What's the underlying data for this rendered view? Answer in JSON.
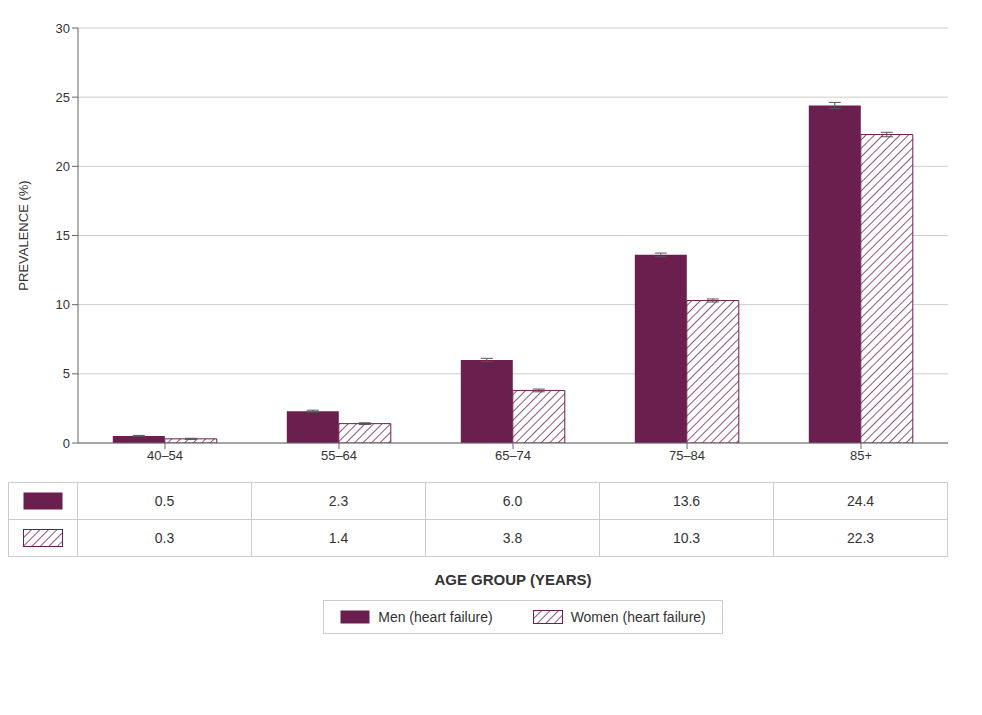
{
  "chart_data": {
    "type": "bar",
    "categories": [
      "40–54",
      "55–64",
      "65–74",
      "75–84",
      "85+"
    ],
    "series": [
      {
        "name": "Men (heart failure)",
        "color": "#6B1F4E",
        "values": [
          0.5,
          2.3,
          6.0,
          13.6,
          24.4
        ],
        "value_labels": [
          "0.5",
          "2.3",
          "6.0",
          "13.6",
          "24.4"
        ],
        "errors": [
          0.05,
          0.07,
          0.12,
          0.13,
          0.22
        ]
      },
      {
        "name": "Women (heart failure)",
        "color": "#6B1F4E",
        "values": [
          0.3,
          1.4,
          3.8,
          10.3,
          22.3
        ],
        "value_labels": [
          "0.3",
          "1.4",
          "3.8",
          "10.3",
          "22.3"
        ],
        "errors": [
          0.04,
          0.06,
          0.1,
          0.11,
          0.16
        ]
      }
    ],
    "ylim": [
      0,
      30
    ],
    "yticks": [
      0,
      5,
      10,
      15,
      20,
      25,
      30
    ],
    "ylabel": "PREVALENCE (%)",
    "xlabel": "AGE GROUP (YEARS)",
    "grid": true,
    "legend": "bottom"
  }
}
